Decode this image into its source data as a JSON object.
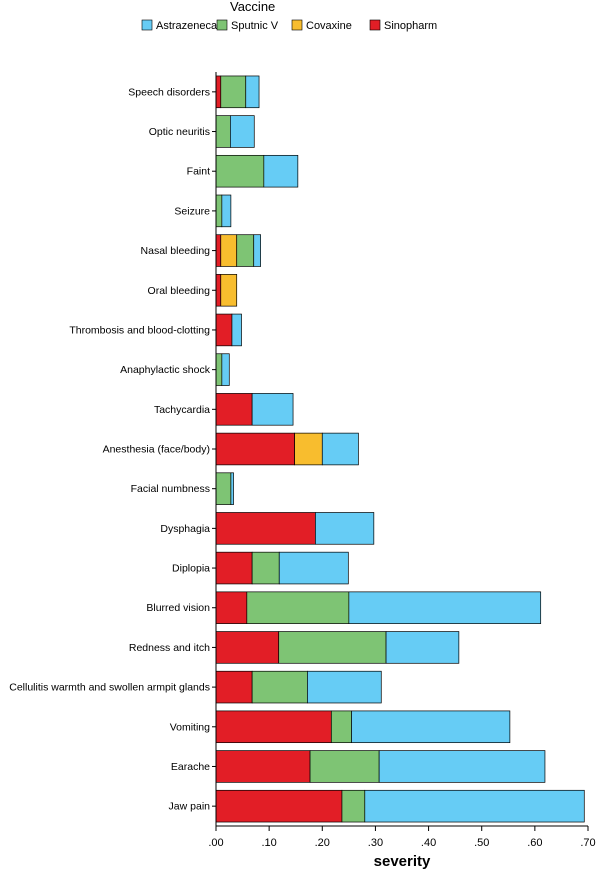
{
  "chart_data": {
    "type": "bar",
    "orientation": "horizontal",
    "stacked": true,
    "legend": {
      "title": "Vaccine",
      "placement": "top",
      "items": [
        {
          "name": "Astrazeneca",
          "color": "#66ccf5"
        },
        {
          "name": "Sputnic V",
          "color": "#7ec474"
        },
        {
          "name": "Covaxine",
          "color": "#f8bd2e"
        },
        {
          "name": "Sinopharm",
          "color": "#e21e26"
        }
      ]
    },
    "categories": [
      "Speech disorders",
      "Optic neuritis",
      "Faint",
      "Seizure",
      "Nasal bleeding",
      "Oral bleeding",
      "Thrombosis and blood-clotting",
      "Anaphylactic shock",
      "Tachycardia",
      "Anesthesia (face/body)",
      "Facial numbness",
      "Dysphagia",
      "Diplopia",
      "Blurred vision",
      "Redness and itch",
      "Cellulitis warmth and swollen armpit glands",
      "Vomiting",
      "Earache",
      "Jaw pain"
    ],
    "stack_order": [
      "Sinopharm",
      "Covaxine",
      "Sputnic V",
      "Astrazeneca"
    ],
    "series": [
      {
        "name": "Sinopharm",
        "color": "#e21e26",
        "values": [
          0.009,
          0,
          0,
          0,
          0.009,
          0.009,
          0.03,
          0,
          0.068,
          0.148,
          0,
          0.187,
          0.068,
          0.058,
          0.118,
          0.068,
          0.217,
          0.177,
          0.237
        ]
      },
      {
        "name": "Covaxine",
        "color": "#f8bd2e",
        "values": [
          0,
          0,
          0,
          0,
          0.03,
          0.03,
          0,
          0,
          0,
          0.052,
          0,
          0,
          0,
          0,
          0,
          0,
          0,
          0,
          0
        ]
      },
      {
        "name": "Sputnic V",
        "color": "#7ec474",
        "values": [
          0.047,
          0.027,
          0.09,
          0.011,
          0.032,
          0,
          0,
          0.011,
          0,
          0,
          0.028,
          0,
          0.051,
          0.192,
          0.202,
          0.104,
          0.038,
          0.13,
          0.043
        ]
      },
      {
        "name": "Astrazeneca",
        "color": "#66ccf5",
        "values": [
          0.025,
          0.045,
          0.064,
          0.017,
          0.013,
          0,
          0.018,
          0.014,
          0.077,
          0.068,
          0.005,
          0.11,
          0.13,
          0.361,
          0.137,
          0.139,
          0.298,
          0.312,
          0.413
        ]
      }
    ],
    "xlabel": "severity",
    "ylabel": "",
    "xlim": [
      0,
      0.7
    ],
    "xticks": [
      0,
      0.1,
      0.2,
      0.3,
      0.4,
      0.5,
      0.6,
      0.7
    ],
    "xtick_labels": [
      ".00",
      ".10",
      ".20",
      ".30",
      ".40",
      ".50",
      ".60",
      ".70"
    ],
    "grid": false
  }
}
